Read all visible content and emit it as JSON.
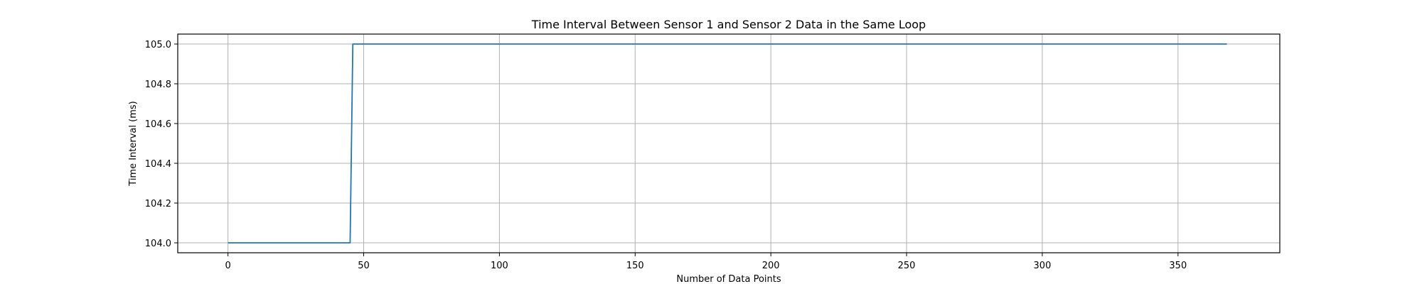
{
  "chart_data": {
    "type": "line",
    "title": "Time Interval Between Sensor 1 and Sensor 2 Data in the Same Loop",
    "xlabel": "Number of Data Points",
    "ylabel": "Time Interval (ms)",
    "xlim": [
      -18.5,
      387.5
    ],
    "ylim": [
      103.95,
      105.05
    ],
    "xticks": [
      0,
      50,
      100,
      150,
      200,
      250,
      300,
      350
    ],
    "yticks": [
      104.0,
      104.2,
      104.4,
      104.6,
      104.8,
      105.0
    ],
    "ytick_labels": [
      "104.0",
      "104.2",
      "104.4",
      "104.6",
      "104.8",
      "105.0"
    ],
    "grid": true,
    "series": [
      {
        "color": "#1f77b4",
        "x": [
          0,
          45,
          46,
          368
        ],
        "y": [
          104.0,
          104.0,
          105.0,
          105.0
        ]
      }
    ]
  }
}
